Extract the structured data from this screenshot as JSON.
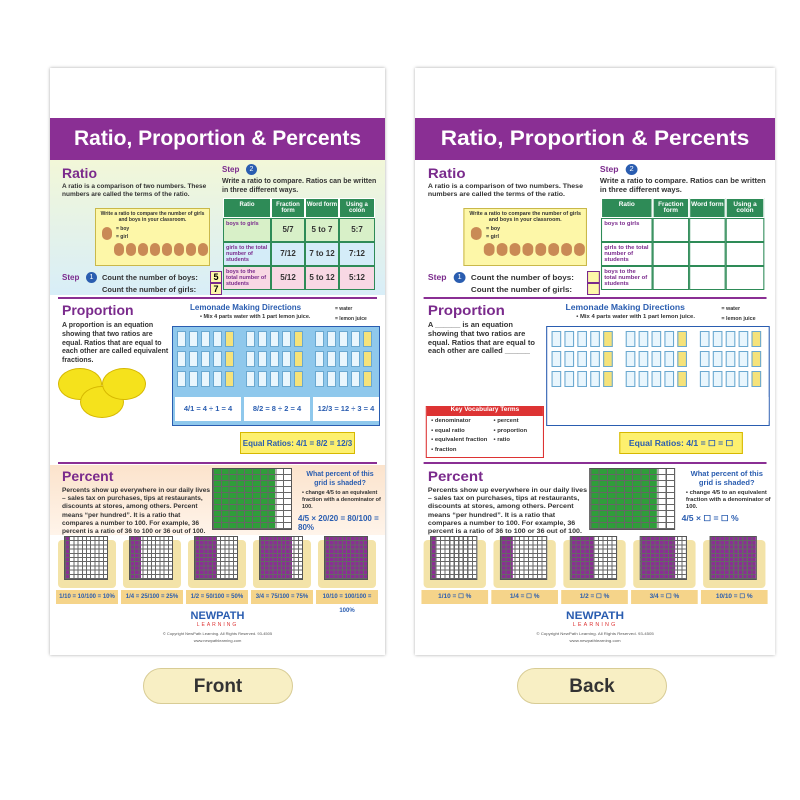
{
  "products": [
    {
      "label": "Front",
      "poster": {
        "title": "Ratio, Proportion & Percents",
        "ratio": {
          "heading": "Ratio",
          "text": "A ratio is a comparison of two numbers. These numbers are called the terms of the ratio.",
          "picture_caption": "Write a ratio to compare the number of girls and boys in your classroom.",
          "legend": [
            "= boy",
            "= girl"
          ],
          "step1_label": "Step",
          "step1_num": "1",
          "step1_lines": [
            "Count the number of boys:",
            "Count the number of girls:"
          ],
          "step1_answers": [
            "5",
            "7"
          ],
          "step2_label": "Step",
          "step2_num": "2",
          "step2_text": "Write a ratio to compare. Ratios can be written in three different ways.",
          "table": {
            "header": [
              "Ratio",
              "Fraction form",
              "Word form",
              "Using a colon"
            ],
            "rows": [
              [
                "boys to girls",
                "5/7",
                "5 to 7",
                "5:7"
              ],
              [
                "girls to the total number of students",
                "7/12",
                "7 to 12",
                "7:12"
              ],
              [
                "boys to the total number of students",
                "5/12",
                "5 to 12",
                "5:12"
              ]
            ]
          }
        },
        "proportion": {
          "heading": "Proportion",
          "text": "A proportion is an equation showing that two ratios are equal. Ratios that are equal to each other are called equivalent fractions.",
          "directions_title": "Lemonade Making Directions",
          "directions_text": "• Mix 4 parts water with 1 part lemon juice.",
          "legend": [
            "= water",
            "= lemon juice"
          ],
          "equations": [
            "4/1 = 4 ÷ 1 = 4",
            "8/2 = 8 ÷ 2 = 4",
            "12/3 = 12 ÷ 3 = 4"
          ],
          "equal_ratios": "Equal Ratios: 4/1 = 8/2 = 12/3"
        },
        "percent": {
          "heading": "Percent",
          "text": "Percents show up everywhere in our daily lives – sales tax on purchases, tips at restaurants, discounts at stores, among others. Percent means “per hundred”. It is a ratio that compares a number to 100. For example, 36 percent is a ratio of 36 to 100 or 36 out of 100.",
          "question": "What percent of this grid is shaded?",
          "hint": "• change 4/5 to an equivalent fraction with a denominator of 100.",
          "equation": "4/5 × 20/20 = 80/100 = 80%",
          "examples": [
            "1/10 = 10/100 = 10%",
            "1/4 = 25/100 = 25%",
            "1/2 = 50/100 = 50%",
            "3/4 = 75/100 = 75%",
            "10/10 = 100/100 = 100%"
          ]
        },
        "footer": {
          "logo": "NEWPATH",
          "logo_sub": "LEARNING",
          "copyright": "© Copyright NewPath Learning. All Rights Reserved. 93-4505",
          "url": "www.newpathlearning.com"
        }
      }
    },
    {
      "label": "Back",
      "poster": {
        "title": "Ratio, Proportion & Percents",
        "ratio": {
          "heading": "Ratio",
          "text": "A ratio is a comparison of two numbers. These numbers are called the terms of the ratio.",
          "picture_caption": "Write a ratio to compare the number of girls and boys in your classroom.",
          "legend": [
            "= boy",
            "= girl"
          ],
          "step1_label": "Step",
          "step1_num": "1",
          "step1_lines": [
            "Count the number of boys:",
            "Count the number of girls:"
          ],
          "step2_label": "Step",
          "step2_num": "2",
          "step2_text": "Write a ratio to compare. Ratios can be written in three different ways.",
          "table": {
            "header": [
              "Ratio",
              "Fraction form",
              "Word form",
              "Using a colon"
            ],
            "rows": [
              [
                "boys to girls"
              ],
              [
                "girls to the total number of students"
              ],
              [
                "boys to the total number of students"
              ]
            ]
          }
        },
        "proportion": {
          "heading": "Proportion",
          "text": "A ______ is an equation showing that two ratios are equal. Ratios that are equal to each other are called ______",
          "directions_title": "Lemonade Making Directions",
          "directions_text": "• Mix 4 parts water with 1 part lemon juice.",
          "legend": [
            "= water",
            "= lemon juice"
          ],
          "equal_ratios": "Equal Ratios: 4/1 = ☐ = ☐",
          "vocab_title": "Key Vocabulary Terms",
          "vocab": [
            "• denominator",
            "• equal ratio",
            "• equivalent fraction",
            "• fraction",
            "• percent",
            "• proportion",
            "• ratio"
          ]
        },
        "percent": {
          "heading": "Percent",
          "text": "Percents show up everywhere in our daily lives – sales tax on purchases, tips at restaurants, discounts at stores, among others. Percent means “per hundred”. It is a ratio that compares a number to 100. For example, 36 percent is a ratio of 36 to 100 or 36 out of 100.",
          "question": "What percent of this grid is shaded?",
          "hint": "• change 4/5 to an equivalent fraction with a denominator of 100.",
          "equation": "4/5 × ☐ = ☐ %",
          "examples": [
            "1/10 = ☐ %",
            "1/4 = ☐ %",
            "1/2 = ☐ %",
            "3/4 = ☐ %",
            "10/10 = ☐ %"
          ]
        },
        "footer": {
          "logo": "NEWPATH",
          "logo_sub": "LEARNING",
          "copyright": "© Copyright NewPath Learning. All Rights Reserved. 93-4505",
          "url": "www.newpathlearning.com"
        }
      }
    }
  ]
}
